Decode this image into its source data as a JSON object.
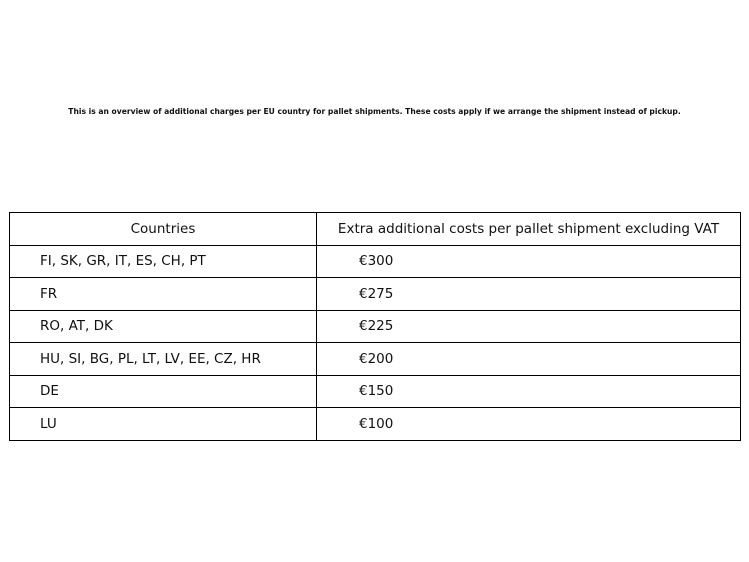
{
  "intro": "This is an overview of additional charges per EU country for pallet shipments. These costs apply if we arrange the shipment instead of pickup.",
  "table": {
    "headers": [
      "Countries",
      "Extra additional costs per pallet shipment excluding VAT"
    ],
    "rows": [
      {
        "countries": "FI, SK, GR, IT, ES, CH, PT",
        "cost": "€300"
      },
      {
        "countries": "FR",
        "cost": "€275"
      },
      {
        "countries": "RO, AT, DK",
        "cost": "€225"
      },
      {
        "countries": "HU, SI, BG, PL, LT, LV, EE, CZ, HR",
        "cost": "€200"
      },
      {
        "countries": "DE",
        "cost": "€150"
      },
      {
        "countries": "LU",
        "cost": "€100"
      }
    ]
  }
}
